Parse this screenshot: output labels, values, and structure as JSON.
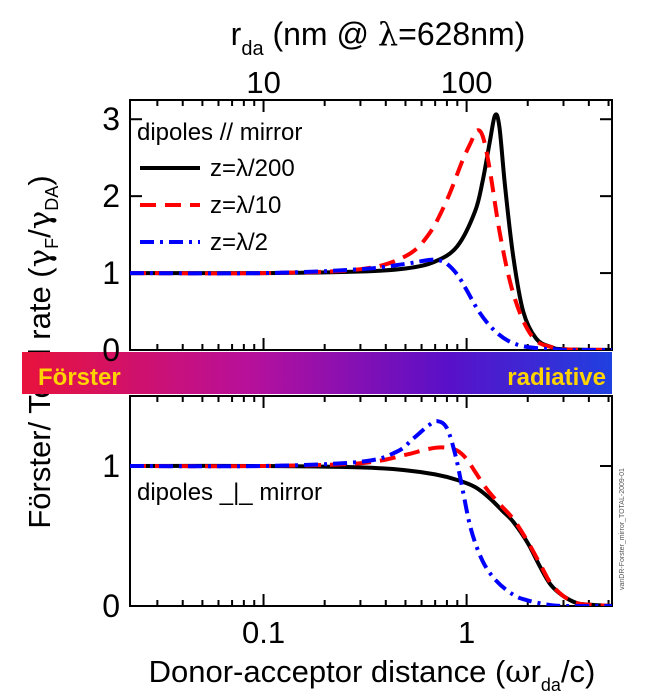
{
  "figure": {
    "top_axis_label_main": "r",
    "top_axis_label_sub": "da",
    "top_axis_label_rest": " (nm @ ",
    "top_axis_label_lambda": "λ",
    "top_axis_label_end": "=628nm)",
    "top_tick_labels": [
      "10",
      "100"
    ],
    "y_label_main": "Förster/ Total rate (",
    "y_label_gamma1": "γ",
    "y_label_sub1": "F",
    "y_label_slash": "/",
    "y_label_gamma2": "γ",
    "y_label_sub2": "DA",
    "y_label_close": ")",
    "x_label_main": "Donor-acceptor distance (",
    "x_label_omega": "ω",
    "x_label_r": "r",
    "x_label_sub": "da",
    "x_label_end": "/c)",
    "band_left": "Förster",
    "band_right": "radiative",
    "band_colors": [
      "#e8123c",
      "#b8109a",
      "#5a10c8",
      "#2040e0"
    ],
    "band_text_color": "#ffd400",
    "top_panel_title": "dipoles // mirror",
    "bottom_panel_title": "dipoles _|_ mirror",
    "watermark": "vanDR-Forster_mirror_TOTAL-2009-01",
    "series_colors": [
      "#000000",
      "#ff0000",
      "#0000ff"
    ],
    "series_dash": [
      "solid",
      "dashed",
      "dash-dot"
    ]
  },
  "chart_data": [
    {
      "type": "line",
      "title": "dipoles // mirror",
      "xlabel": "Donor-acceptor distance (ωr_da/c)",
      "ylabel": "Förster/ Total rate (γF/γDA)",
      "xscale": "log",
      "xlim": [
        0.022,
        5.2
      ],
      "ylim": [
        0,
        3.25
      ],
      "x_ticks": [
        0.1,
        1
      ],
      "y_ticks": [
        0,
        1,
        2,
        3
      ],
      "top_axis": {
        "label": "r_da (nm @ λ=628nm)",
        "ticks": [
          10,
          100
        ]
      },
      "legend": "top-left",
      "series": [
        {
          "name": "z=λ/200",
          "x": [
            0.022,
            0.1,
            0.3,
            0.5,
            0.7,
            0.9,
            1.1,
            1.2,
            1.3,
            1.38,
            1.45,
            1.55,
            1.7,
            1.9,
            2.2,
            2.6,
            3.0,
            5.2
          ],
          "y": [
            1.0,
            1.0,
            1.02,
            1.06,
            1.15,
            1.35,
            1.8,
            2.2,
            2.7,
            3.05,
            2.9,
            2.1,
            1.2,
            0.5,
            0.15,
            0.04,
            0.01,
            0.0
          ]
        },
        {
          "name": "z=λ/10",
          "x": [
            0.022,
            0.1,
            0.3,
            0.5,
            0.65,
            0.8,
            0.95,
            1.05,
            1.12,
            1.2,
            1.3,
            1.45,
            1.65,
            1.9,
            2.2,
            2.6,
            3.0,
            5.2
          ],
          "y": [
            1.0,
            1.0,
            1.05,
            1.22,
            1.5,
            1.95,
            2.45,
            2.7,
            2.85,
            2.78,
            2.35,
            1.55,
            0.85,
            0.38,
            0.12,
            0.04,
            0.01,
            0.0
          ]
        },
        {
          "name": "z=λ/2",
          "x": [
            0.022,
            0.1,
            0.3,
            0.5,
            0.65,
            0.72,
            0.8,
            0.9,
            1.0,
            1.15,
            1.35,
            1.6,
            1.9,
            2.3,
            2.7,
            3.2,
            5.2
          ],
          "y": [
            1.0,
            1.0,
            1.05,
            1.12,
            1.17,
            1.17,
            1.12,
            0.98,
            0.78,
            0.5,
            0.27,
            0.12,
            0.05,
            0.02,
            0.01,
            0.0,
            0.0
          ]
        }
      ]
    },
    {
      "type": "line",
      "title": "dipoles _|_ mirror",
      "xlabel": "Donor-acceptor distance (ωr_da/c)",
      "ylabel": "Förster/ Total rate (γF/γDA)",
      "xscale": "log",
      "xlim": [
        0.022,
        5.2
      ],
      "ylim": [
        0,
        1.5
      ],
      "x_ticks": [
        0.1,
        1
      ],
      "y_ticks": [
        0,
        1
      ],
      "series": [
        {
          "name": "z=λ/200",
          "x": [
            0.022,
            0.1,
            0.3,
            0.5,
            0.7,
            0.9,
            1.1,
            1.3,
            1.5,
            1.7,
            2.0,
            2.3,
            2.6,
            3.0,
            3.5,
            4.0,
            5.2
          ],
          "y": [
            1.0,
            1.0,
            0.99,
            0.97,
            0.94,
            0.9,
            0.85,
            0.77,
            0.68,
            0.6,
            0.45,
            0.28,
            0.15,
            0.07,
            0.02,
            0.01,
            0.0
          ]
        },
        {
          "name": "z=λ/10",
          "x": [
            0.022,
            0.1,
            0.3,
            0.5,
            0.6,
            0.7,
            0.8,
            0.9,
            1.0,
            1.1,
            1.25,
            1.45,
            1.7,
            2.0,
            2.3,
            2.6,
            3.0,
            3.5,
            4.0,
            5.2
          ],
          "y": [
            1.0,
            1.0,
            1.02,
            1.08,
            1.11,
            1.13,
            1.13,
            1.11,
            1.05,
            0.96,
            0.84,
            0.73,
            0.62,
            0.46,
            0.3,
            0.16,
            0.07,
            0.02,
            0.01,
            0.0
          ]
        },
        {
          "name": "z=λ/2",
          "x": [
            0.022,
            0.1,
            0.3,
            0.45,
            0.55,
            0.65,
            0.72,
            0.8,
            0.88,
            0.95,
            1.05,
            1.2,
            1.4,
            1.7,
            2.0,
            2.5,
            3.0,
            5.2
          ],
          "y": [
            1.0,
            1.0,
            1.03,
            1.1,
            1.2,
            1.29,
            1.32,
            1.27,
            1.08,
            0.85,
            0.55,
            0.32,
            0.18,
            0.08,
            0.04,
            0.01,
            0.0,
            0.0
          ]
        }
      ]
    }
  ]
}
